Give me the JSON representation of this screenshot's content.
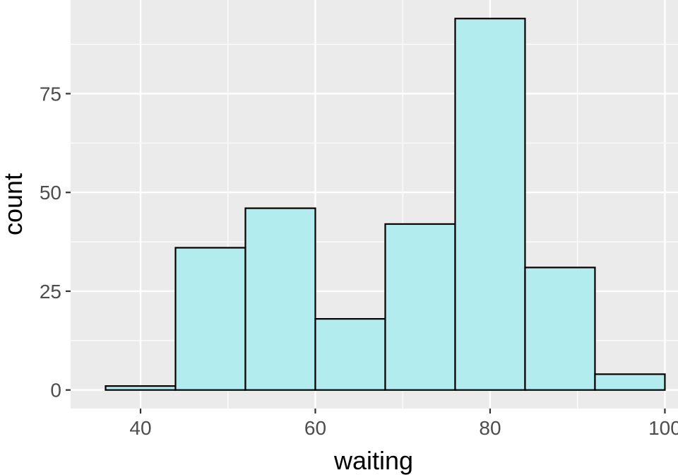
{
  "chart_data": {
    "type": "bar",
    "subtype": "histogram",
    "xlabel": "waiting",
    "ylabel": "count",
    "bin_width": 8,
    "bins": [
      {
        "x0": 36,
        "x1": 44,
        "count": 1
      },
      {
        "x0": 44,
        "x1": 52,
        "count": 36
      },
      {
        "x0": 52,
        "x1": 60,
        "count": 46
      },
      {
        "x0": 60,
        "x1": 68,
        "count": 18
      },
      {
        "x0": 68,
        "x1": 76,
        "count": 42
      },
      {
        "x0": 76,
        "x1": 84,
        "count": 94
      },
      {
        "x0": 84,
        "x1": 92,
        "count": 31
      },
      {
        "x0": 92,
        "x1": 100,
        "count": 4
      }
    ],
    "xlim": [
      32,
      101.5
    ],
    "ylim": [
      -4.7,
      98.7
    ],
    "x_ticks": [
      40,
      60,
      80,
      100
    ],
    "x_minor_ticks": [
      50,
      70,
      90
    ],
    "y_ticks": [
      0,
      25,
      50,
      75
    ],
    "y_minor_ticks": [
      12.5,
      37.5,
      62.5,
      87.5
    ],
    "grid": true,
    "legend": "none",
    "colors": {
      "bar_fill": "#b2ecee",
      "bar_stroke": "#000000",
      "panel_background": "#ebebeb",
      "grid_line": "#ffffff",
      "tick_label": "#4d4d4d"
    }
  }
}
